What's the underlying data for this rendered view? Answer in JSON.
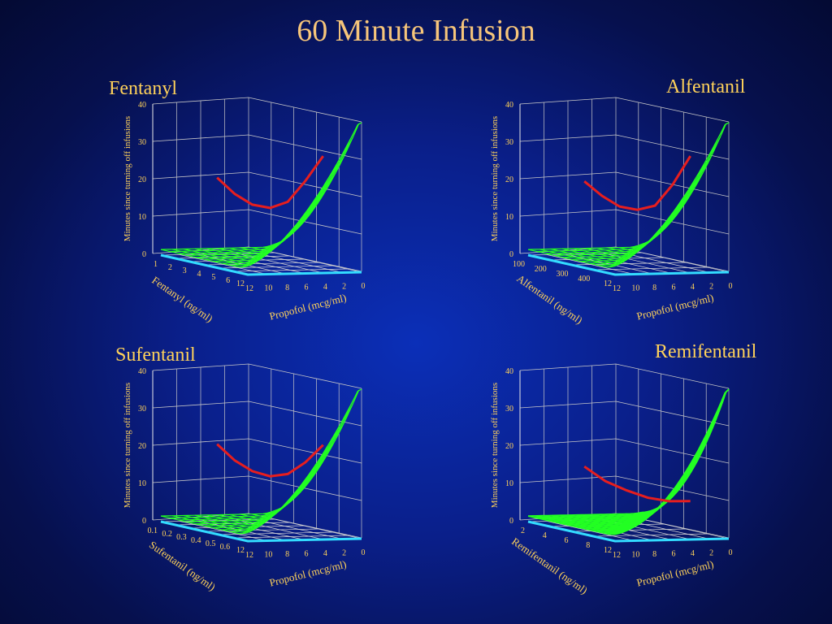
{
  "title": "60 Minute Infusion",
  "colors": {
    "frame": "#e8e8e8",
    "grid": "#c8c8c8",
    "floor": "#d8d8d8",
    "surface": "#22ff22",
    "baseline": "#33dcff",
    "optimal": "#e61e1e",
    "text": "#ffd25a"
  },
  "chart_data": [
    {
      "type": "surface3d",
      "title": "Fentanyl",
      "zlabel": "Minutes since turning off infusions",
      "zticks": [
        "0",
        "10",
        "20",
        "30",
        "40"
      ],
      "zlim": [
        0,
        40
      ],
      "xlabel": "Propofol (mcg/ml)",
      "xticks": [
        "12",
        "10",
        "8",
        "6",
        "4",
        "2",
        "0"
      ],
      "ylabel": "Fentanyl (ng/ml)",
      "yticks": [
        "1",
        "2",
        "3",
        "4",
        "5",
        "6",
        "12"
      ],
      "optimal_curve_minutes": [
        23,
        19,
        16.5,
        16,
        18,
        24,
        31
      ]
    },
    {
      "type": "surface3d",
      "title": "Alfentanil",
      "zlabel": "Minutes since turning off infusions",
      "zticks": [
        "0",
        "10",
        "20",
        "30",
        "40"
      ],
      "zlim": [
        0,
        40
      ],
      "xlabel": "Propofol (mcg/ml)",
      "xticks": [
        "12",
        "10",
        "8",
        "6",
        "4",
        "2",
        "0"
      ],
      "ylabel": "Alfentanil (ng/ml)",
      "yticks": [
        "100",
        "200",
        "300",
        "400",
        "12"
      ],
      "optimal_curve_minutes": [
        22,
        18.5,
        16,
        15.5,
        17,
        23,
        31
      ]
    },
    {
      "type": "surface3d",
      "title": "Sufentanil",
      "zlabel": "Minutes since turning off infusions",
      "zticks": [
        "0",
        "10",
        "20",
        "30",
        "40"
      ],
      "zlim": [
        0,
        40
      ],
      "xlabel": "Propofol (mcg/ml)",
      "xticks": [
        "12",
        "10",
        "8",
        "6",
        "4",
        "2",
        "0"
      ],
      "ylabel": "Sufentanil (ng/ml)",
      "yticks": [
        "0.1",
        "0.2",
        "0.3",
        "0.4",
        "0.5",
        "0.6",
        "12"
      ],
      "optimal_curve_minutes": [
        23,
        19,
        16.5,
        15.5,
        16.5,
        20,
        25
      ]
    },
    {
      "type": "surface3d",
      "title": "Remifentanil",
      "zlabel": "Minutes since turning off infusions",
      "zticks": [
        "0",
        "10",
        "20",
        "30",
        "40"
      ],
      "zlim": [
        0,
        40
      ],
      "xlabel": "Propofol (mcg/ml)",
      "xticks": [
        "12",
        "10",
        "8",
        "6",
        "4",
        "2",
        "0"
      ],
      "ylabel": "Remifentanil (ng/ml)",
      "yticks": [
        "2",
        "4",
        "6",
        "8",
        "12"
      ],
      "optimal_curve_minutes": [
        17,
        13.5,
        11.5,
        10,
        9.5,
        10
      ]
    }
  ]
}
